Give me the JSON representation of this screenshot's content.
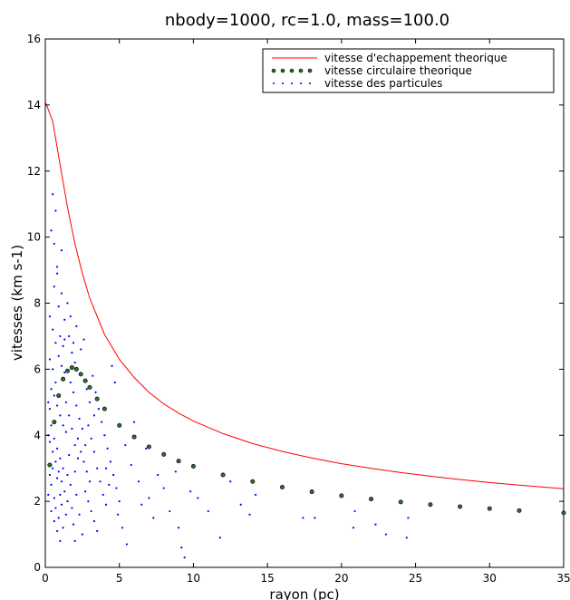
{
  "chart_data": {
    "type": "scatter",
    "title": "nbody=1000, rc=1.0, mass=100.0",
    "xlabel": "rayon (pc)",
    "ylabel": "vitesses (km s-1)",
    "xlim": [
      0,
      35
    ],
    "ylim": [
      0,
      16
    ],
    "xticks": [
      "0",
      "5",
      "10",
      "15",
      "20",
      "25",
      "30",
      "35"
    ],
    "yticks": [
      "0",
      "2",
      "4",
      "6",
      "8",
      "10",
      "12",
      "14",
      "16"
    ],
    "legend_position": "top-right",
    "grid": false,
    "series": [
      {
        "name": "vitesse d'echappement theorique",
        "kind": "line",
        "color": "#ff0000",
        "points": [
          [
            0,
            14.1
          ],
          [
            0.5,
            13.5
          ],
          [
            1,
            12.2
          ],
          [
            1.5,
            10.9
          ],
          [
            2,
            9.8
          ],
          [
            2.5,
            8.9
          ],
          [
            3,
            8.15
          ],
          [
            4,
            7.05
          ],
          [
            5,
            6.3
          ],
          [
            6,
            5.75
          ],
          [
            7,
            5.3
          ],
          [
            8,
            4.95
          ],
          [
            9,
            4.67
          ],
          [
            10,
            4.43
          ],
          [
            12,
            4.05
          ],
          [
            14,
            3.75
          ],
          [
            16,
            3.51
          ],
          [
            18,
            3.31
          ],
          [
            20,
            3.14
          ],
          [
            22,
            3.0
          ],
          [
            24,
            2.87
          ],
          [
            26,
            2.76
          ],
          [
            28,
            2.66
          ],
          [
            30,
            2.57
          ],
          [
            32,
            2.49
          ],
          [
            35,
            2.38
          ]
        ]
      },
      {
        "name": "vitesse circulaire theorique",
        "kind": "dotted",
        "color": "#2e6b2e",
        "points": [
          [
            0.3,
            3.1
          ],
          [
            0.6,
            4.4
          ],
          [
            0.9,
            5.2
          ],
          [
            1.2,
            5.7
          ],
          [
            1.5,
            5.95
          ],
          [
            1.8,
            6.05
          ],
          [
            2.1,
            6.0
          ],
          [
            2.4,
            5.85
          ],
          [
            2.7,
            5.65
          ],
          [
            3.0,
            5.45
          ],
          [
            3.5,
            5.1
          ],
          [
            4.0,
            4.8
          ],
          [
            5,
            4.3
          ],
          [
            6,
            3.95
          ],
          [
            7,
            3.65
          ],
          [
            8,
            3.42
          ],
          [
            9,
            3.22
          ],
          [
            10,
            3.06
          ],
          [
            12,
            2.8
          ],
          [
            14,
            2.6
          ],
          [
            16,
            2.43
          ],
          [
            18,
            2.29
          ],
          [
            20,
            2.17
          ],
          [
            22,
            2.07
          ],
          [
            24,
            1.98
          ],
          [
            26,
            1.9
          ],
          [
            28,
            1.84
          ],
          [
            30,
            1.78
          ],
          [
            32,
            1.72
          ],
          [
            35,
            1.65
          ]
        ]
      },
      {
        "name": "vitesse des particules",
        "kind": "scatter",
        "color": "#0000ff",
        "points": [
          [
            0.2,
            2.2
          ],
          [
            0.3,
            4.8
          ],
          [
            0.4,
            10.2
          ],
          [
            0.5,
            11.3
          ],
          [
            0.6,
            9.8
          ],
          [
            0.7,
            10.8
          ],
          [
            0.8,
            8.9
          ],
          [
            1.1,
            9.6
          ],
          [
            0.3,
            7.6
          ],
          [
            0.5,
            7.2
          ],
          [
            0.7,
            6.8
          ],
          [
            0.9,
            6.4
          ],
          [
            1.1,
            6.1
          ],
          [
            1.3,
            5.9
          ],
          [
            0.4,
            5.4
          ],
          [
            0.6,
            5.2
          ],
          [
            0.8,
            4.9
          ],
          [
            1.0,
            4.6
          ],
          [
            1.2,
            4.3
          ],
          [
            1.4,
            4.1
          ],
          [
            0.3,
            3.8
          ],
          [
            0.5,
            3.5
          ],
          [
            0.7,
            3.2
          ],
          [
            0.9,
            2.9
          ],
          [
            1.1,
            2.6
          ],
          [
            1.3,
            2.3
          ],
          [
            1.5,
            2.0
          ],
          [
            0.4,
            1.7
          ],
          [
            0.6,
            1.4
          ],
          [
            0.8,
            1.1
          ],
          [
            1.0,
            0.8
          ],
          [
            1.6,
            7.0
          ],
          [
            1.8,
            6.5
          ],
          [
            2.0,
            6.2
          ],
          [
            1.7,
            5.6
          ],
          [
            1.9,
            5.3
          ],
          [
            2.1,
            4.9
          ],
          [
            2.3,
            4.5
          ],
          [
            2.5,
            4.2
          ],
          [
            2.2,
            3.9
          ],
          [
            2.4,
            3.5
          ],
          [
            2.6,
            3.2
          ],
          [
            2.8,
            2.9
          ],
          [
            3.0,
            2.6
          ],
          [
            2.7,
            2.3
          ],
          [
            2.9,
            2.0
          ],
          [
            3.1,
            1.7
          ],
          [
            3.3,
            1.4
          ],
          [
            3.5,
            1.1
          ],
          [
            2.0,
            0.8
          ],
          [
            3.2,
            5.8
          ],
          [
            3.4,
            5.3
          ],
          [
            3.6,
            4.8
          ],
          [
            3.8,
            4.4
          ],
          [
            4.0,
            4.0
          ],
          [
            4.2,
            3.6
          ],
          [
            4.4,
            3.2
          ],
          [
            4.6,
            2.8
          ],
          [
            4.8,
            2.4
          ],
          [
            5.0,
            2.0
          ],
          [
            4.5,
            6.1
          ],
          [
            4.7,
            5.6
          ],
          [
            4.1,
            3.0
          ],
          [
            4.3,
            2.5
          ],
          [
            4.9,
            1.6
          ],
          [
            5.2,
            1.2
          ],
          [
            5.5,
            0.7
          ],
          [
            5.4,
            3.7
          ],
          [
            5.8,
            3.1
          ],
          [
            6.0,
            4.4
          ],
          [
            6.3,
            2.6
          ],
          [
            6.5,
            1.9
          ],
          [
            6.8,
            3.6
          ],
          [
            7.0,
            2.1
          ],
          [
            7.3,
            1.5
          ],
          [
            7.6,
            2.8
          ],
          [
            8.0,
            2.4
          ],
          [
            8.4,
            1.7
          ],
          [
            8.8,
            2.9
          ],
          [
            9.0,
            1.2
          ],
          [
            9.2,
            0.6
          ],
          [
            9.4,
            0.3
          ],
          [
            9.8,
            2.3
          ],
          [
            10.3,
            2.1
          ],
          [
            11.0,
            1.7
          ],
          [
            11.8,
            0.9
          ],
          [
            12.5,
            2.6
          ],
          [
            13.2,
            1.9
          ],
          [
            13.8,
            1.6
          ],
          [
            14.2,
            2.2
          ],
          [
            17.4,
            1.5
          ],
          [
            18.2,
            1.5
          ],
          [
            20.8,
            1.2
          ],
          [
            20.9,
            1.7
          ],
          [
            22.3,
            1.3
          ],
          [
            23.0,
            1.0
          ],
          [
            24.5,
            1.5
          ],
          [
            24.4,
            0.9
          ],
          [
            0.5,
            6.0
          ],
          [
            0.7,
            5.6
          ],
          [
            0.9,
            7.9
          ],
          [
            1.1,
            8.3
          ],
          [
            1.3,
            7.5
          ],
          [
            0.3,
            6.3
          ],
          [
            0.6,
            8.5
          ],
          [
            0.8,
            9.1
          ],
          [
            1.0,
            7.0
          ],
          [
            1.2,
            6.7
          ],
          [
            0.4,
            4.3
          ],
          [
            0.6,
            3.9
          ],
          [
            0.8,
            3.6
          ],
          [
            1.0,
            3.3
          ],
          [
            1.2,
            3.0
          ],
          [
            1.4,
            5.0
          ],
          [
            1.6,
            4.6
          ],
          [
            1.8,
            4.2
          ],
          [
            2.0,
            3.7
          ],
          [
            2.2,
            3.3
          ],
          [
            1.5,
            8.0
          ],
          [
            1.7,
            7.6
          ],
          [
            1.3,
            6.9
          ],
          [
            1.9,
            6.8
          ],
          [
            2.1,
            7.3
          ],
          [
            2.4,
            6.6
          ],
          [
            2.6,
            6.9
          ],
          [
            2.8,
            5.4
          ],
          [
            3.0,
            5.0
          ],
          [
            3.3,
            4.6
          ],
          [
            0.2,
            5.0
          ],
          [
            0.2,
            4.0
          ],
          [
            0.3,
            2.8
          ],
          [
            0.4,
            2.5
          ],
          [
            0.5,
            3.0
          ],
          [
            0.6,
            2.1
          ],
          [
            0.7,
            1.8
          ],
          [
            0.8,
            2.7
          ],
          [
            0.9,
            1.5
          ],
          [
            1.0,
            2.2
          ],
          [
            1.1,
            1.9
          ],
          [
            1.2,
            1.2
          ],
          [
            1.4,
            1.6
          ],
          [
            1.5,
            2.8
          ],
          [
            1.6,
            3.4
          ],
          [
            1.7,
            2.5
          ],
          [
            1.8,
            1.8
          ],
          [
            1.9,
            1.3
          ],
          [
            2.0,
            2.9
          ],
          [
            2.1,
            2.2
          ],
          [
            2.3,
            1.6
          ],
          [
            2.5,
            1.0
          ],
          [
            2.7,
            3.7
          ],
          [
            2.9,
            4.3
          ],
          [
            3.1,
            3.9
          ],
          [
            3.3,
            3.5
          ],
          [
            3.5,
            3.0
          ],
          [
            3.7,
            2.6
          ],
          [
            3.9,
            2.2
          ],
          [
            4.1,
            1.9
          ]
        ]
      }
    ]
  }
}
